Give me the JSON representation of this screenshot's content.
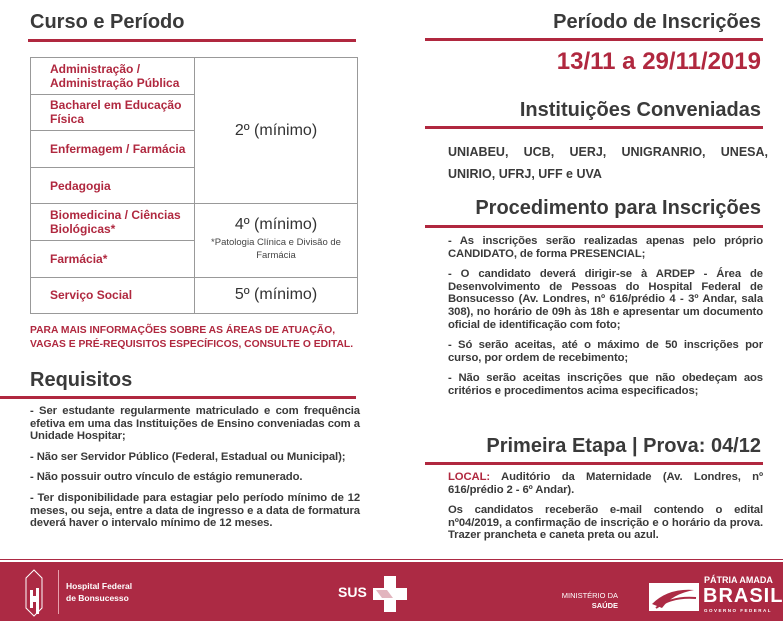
{
  "left": {
    "course_title": "Curso e Período",
    "table": [
      {
        "course": "Administração / Administração Pública"
      },
      {
        "course": "Bacharel em Educação Física"
      },
      {
        "course": "Enfermagem / Farmácia"
      },
      {
        "course": "Pedagogia"
      },
      {
        "course": "Biomedicina / Ciências Biológicas*"
      },
      {
        "course": "Farmácia*"
      },
      {
        "course": "Serviço Social"
      }
    ],
    "periods": {
      "p2": "2º (mínimo)",
      "p4": "4º (mínimo)",
      "p4_note": "*Patologia Clínica e Divisão de Farmácia",
      "p5": "5º (mínimo)"
    },
    "info_note": "PARA MAIS INFORMAÇÕES SOBRE AS ÁREAS DE ATUAÇÃO, VAGAS E PRÉ-REQUISITOS ESPECÍFICOS, CONSULTE O EDITAL.",
    "req_title": "Requisitos",
    "requirements": [
      "- Ser estudante regularmente matriculado e com frequência efetiva em uma das Instituições de Ensino conveniadas com a Unidade Hospitar;",
      "- Não ser Servidor Público (Federal, Estadual ou Municipal);",
      "- Não possuir outro vínculo de estágio remunerado.",
      "- Ter disponibilidade para estagiar pelo período mínimo de 12 meses, ou seja, entre a data de ingresso e a data de formatura deverá haver o intervalo mínimo de 12 meses."
    ]
  },
  "right": {
    "period_title": "Período de Inscrições",
    "period_dates": "13/11 a 29/11/2019",
    "inst_title": "Instituições Conveniadas",
    "institutions": "UNIABEU, UCB, UERJ, UNIGRANRIO, UNESA, UNIRIO, UFRJ, UFF e UVA",
    "proc_title": "Procedimento para Inscrições",
    "procedures": [
      "- As inscrições serão realizadas apenas pelo próprio CANDIDATO, de forma PRESENCIAL;",
      "- O candidato deverá dirigir-se à ARDEP - Área de Desenvolvimento de Pessoas do Hospital Federal de Bonsucesso (Av. Londres, nº 616/prédio 4 - 3º Andar, sala 308), no horário de 09h às 18h e apresentar um documento oficial de identificação com foto;",
      "- Só serão aceitas, até o máximo de 50 inscrições por curso, por ordem de recebimento;",
      "- Não serão aceitas inscrições que não obedeçam aos critérios e procedimentos acima especificados;"
    ],
    "stage_title": "Primeira Etapa | Prova: 04/12",
    "local_label": "LOCAL:",
    "local_text": " Auditório da Maternidade (Av. Londres, nº 616/prédio 2 - 6º Andar).",
    "stage_text": "Os candidatos receberão e-mail contendo o edital nº04/2019, a confirmação de inscrição e o horário da prova. Trazer prancheta e caneta preta ou azul."
  },
  "footer": {
    "hospital": [
      "Hospital Federal",
      "de Bonsucesso"
    ],
    "sus": "SUS",
    "ministry": [
      "MINISTÉRIO DA",
      "SAÚDE"
    ],
    "brasil": [
      "PÁTRIA AMADA",
      "BRASIL",
      "GOVERNO FEDERAL"
    ]
  },
  "colors": {
    "accent": "#b0283f",
    "footer": "#ac2a44"
  }
}
